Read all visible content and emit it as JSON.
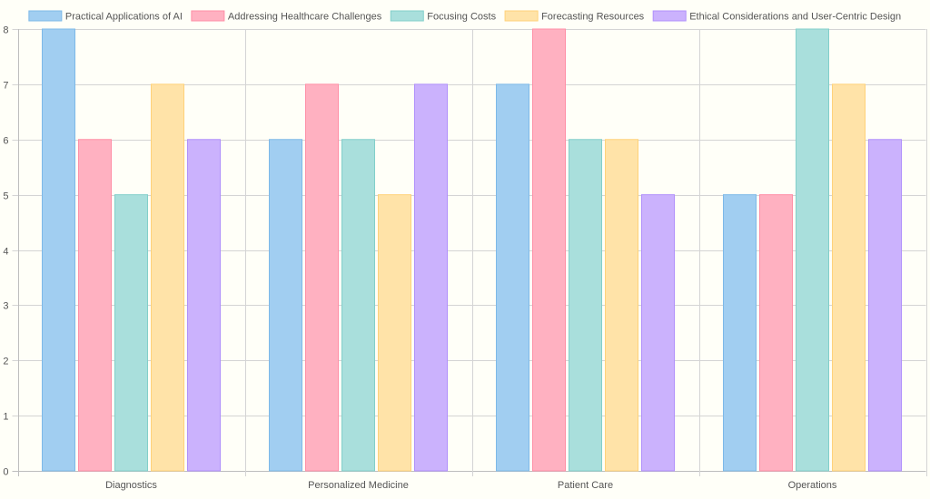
{
  "chart_data": {
    "type": "bar",
    "categories": [
      "Diagnostics",
      "Personalized Medicine",
      "Patient Care",
      "Operations"
    ],
    "series": [
      {
        "name": "Practical Applications of AI",
        "values": [
          8,
          6,
          7,
          5
        ],
        "color": "#a1cef1",
        "border": "#7db9e8"
      },
      {
        "name": "Addressing Healthcare Challenges",
        "values": [
          6,
          7,
          8,
          5
        ],
        "color": "#ffb1c1",
        "border": "#ff8fa6"
      },
      {
        "name": "Focusing Costs",
        "values": [
          5,
          6,
          6,
          8
        ],
        "color": "#a9dfdc",
        "border": "#82cfca"
      },
      {
        "name": "Forecasting Resources",
        "values": [
          7,
          5,
          6,
          7
        ],
        "color": "#ffe3a8",
        "border": "#ffd27a"
      },
      {
        "name": "Ethical Considerations and User-Centric Design",
        "values": [
          6,
          7,
          5,
          6
        ],
        "color": "#cbb2fd",
        "border": "#b090fb"
      }
    ],
    "ylim": [
      0,
      8
    ],
    "yticks": [
      "0",
      "1",
      "2",
      "3",
      "4",
      "5",
      "6",
      "7",
      "8"
    ],
    "title": "",
    "xlabel": "",
    "ylabel": "",
    "legend_position": "top",
    "grid": true
  },
  "colors": {
    "background": "#fffff8",
    "grid": "#d4d4d4",
    "axis": "#bdbdbd",
    "text": "#555555"
  }
}
